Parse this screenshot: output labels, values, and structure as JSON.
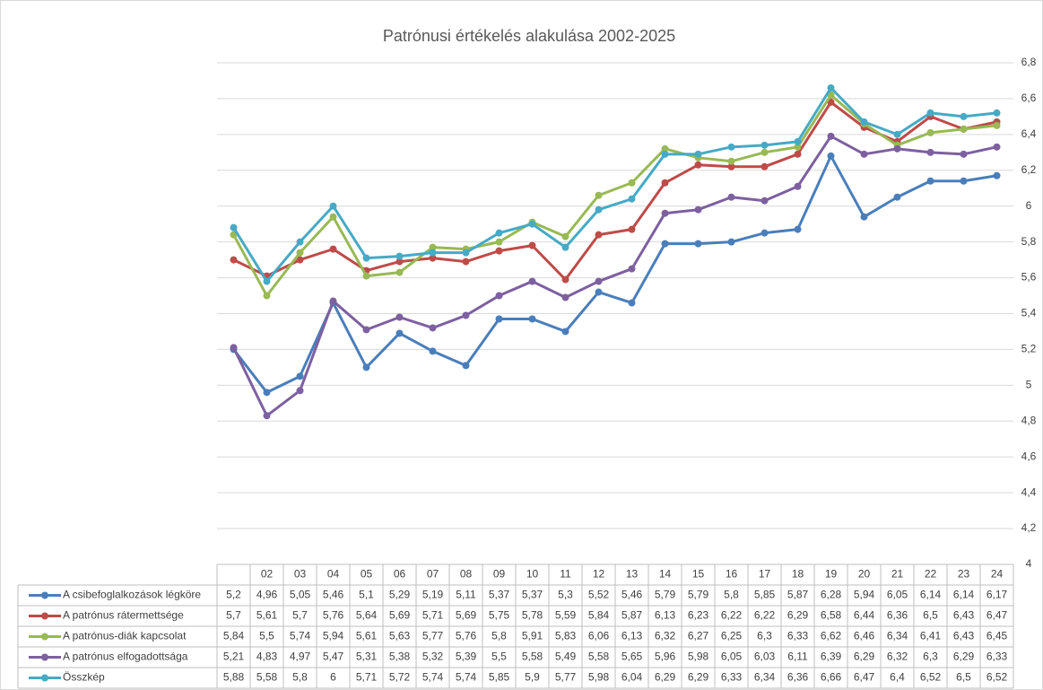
{
  "chart_data": {
    "type": "line",
    "title": "Patrónusi értékelés alakulása 2002-2025",
    "categories": [
      null,
      "02",
      "03",
      "04",
      "05",
      "06",
      "07",
      "08",
      "09",
      "10",
      "11",
      "12",
      "13",
      "14",
      "15",
      "16",
      "17",
      "18",
      "19",
      "20",
      "21",
      "22",
      "23",
      "24"
    ],
    "series": [
      {
        "name": "A csibefoglalkozások légköre",
        "color": "#4a7ebb",
        "values": [
          5.2,
          4.96,
          5.05,
          5.46,
          5.1,
          5.29,
          5.19,
          5.11,
          5.37,
          5.37,
          5.3,
          5.52,
          5.46,
          5.79,
          5.79,
          5.8,
          5.85,
          5.87,
          6.28,
          5.94,
          6.05,
          6.14,
          6.14,
          6.17
        ],
        "value_labels": [
          "5,2",
          "4,96",
          "5,05",
          "5,46",
          "5,1",
          "5,29",
          "5,19",
          "5,11",
          "5,37",
          "5,37",
          "5,3",
          "5,52",
          "5,46",
          "5,79",
          "5,79",
          "5,8",
          "5,85",
          "5,87",
          "6,28",
          "5,94",
          "6,05",
          "6,14",
          "6,14",
          "6,17"
        ]
      },
      {
        "name": "A patrónus rátermettsége",
        "color": "#be4b48",
        "values": [
          5.7,
          5.61,
          5.7,
          5.76,
          5.64,
          5.69,
          5.71,
          5.69,
          5.75,
          5.78,
          5.59,
          5.84,
          5.87,
          6.13,
          6.23,
          6.22,
          6.22,
          6.29,
          6.58,
          6.44,
          6.36,
          6.5,
          6.43,
          6.47
        ],
        "value_labels": [
          "5,7",
          "5,61",
          "5,7",
          "5,76",
          "5,64",
          "5,69",
          "5,71",
          "5,69",
          "5,75",
          "5,78",
          "5,59",
          "5,84",
          "5,87",
          "6,13",
          "6,23",
          "6,22",
          "6,22",
          "6,29",
          "6,58",
          "6,44",
          "6,36",
          "6,5",
          "6,43",
          "6,47"
        ]
      },
      {
        "name": "A patrónus-diák kapcsolat",
        "color": "#98b954",
        "values": [
          5.84,
          5.5,
          5.74,
          5.94,
          5.61,
          5.63,
          5.77,
          5.76,
          5.8,
          5.91,
          5.83,
          6.06,
          6.13,
          6.32,
          6.27,
          6.25,
          6.3,
          6.33,
          6.62,
          6.46,
          6.34,
          6.41,
          6.43,
          6.45
        ],
        "value_labels": [
          "5,84",
          "5,5",
          "5,74",
          "5,94",
          "5,61",
          "5,63",
          "5,77",
          "5,76",
          "5,8",
          "5,91",
          "5,83",
          "6,06",
          "6,13",
          "6,32",
          "6,27",
          "6,25",
          "6,3",
          "6,33",
          "6,62",
          "6,46",
          "6,34",
          "6,41",
          "6,43",
          "6,45"
        ]
      },
      {
        "name": "A patrónus elfogadottsága",
        "color": "#7d60a0",
        "values": [
          5.21,
          4.83,
          4.97,
          5.47,
          5.31,
          5.38,
          5.32,
          5.39,
          5.5,
          5.58,
          5.49,
          5.58,
          5.65,
          5.96,
          5.98,
          6.05,
          6.03,
          6.11,
          6.39,
          6.29,
          6.32,
          6.3,
          6.29,
          6.33
        ],
        "value_labels": [
          "5,21",
          "4,83",
          "4,97",
          "5,47",
          "5,31",
          "5,38",
          "5,32",
          "5,39",
          "5,5",
          "5,58",
          "5,49",
          "5,58",
          "5,65",
          "5,96",
          "5,98",
          "6,05",
          "6,03",
          "6,11",
          "6,39",
          "6,29",
          "6,32",
          "6,3",
          "6,29",
          "6,33"
        ]
      },
      {
        "name": "Összkép",
        "color": "#46aac5",
        "values": [
          5.88,
          5.58,
          5.8,
          6,
          5.71,
          5.72,
          5.74,
          5.74,
          5.85,
          5.9,
          5.77,
          5.98,
          6.04,
          6.29,
          6.29,
          6.33,
          6.34,
          6.36,
          6.66,
          6.47,
          6.4,
          6.52,
          6.5,
          6.52
        ],
        "value_labels": [
          "5,88",
          "5,58",
          "5,8",
          "6",
          "5,71",
          "5,72",
          "5,74",
          "5,74",
          "5,85",
          "5,9",
          "5,77",
          "5,98",
          "6,04",
          "6,29",
          "6,29",
          "6,33",
          "6,34",
          "6,36",
          "6,66",
          "6,47",
          "6,4",
          "6,52",
          "6,5",
          "6,52"
        ]
      }
    ],
    "ylim": [
      4,
      6.8
    ],
    "yticks": [
      4,
      {
        "value": 4.2,
        "label": "4,2"
      },
      {
        "value": 4.4,
        "label": "4,4"
      },
      {
        "value": 4.6,
        "label": "4,6"
      },
      {
        "value": 4.8,
        "label": "4,8"
      },
      5,
      {
        "value": 5.2,
        "label": "5,2"
      },
      {
        "value": 5.4,
        "label": "5,4"
      },
      {
        "value": 5.6,
        "label": "5,6"
      },
      {
        "value": 5.8,
        "label": "5,8"
      },
      6,
      {
        "value": 6.2,
        "label": "6,2"
      },
      {
        "value": 6.4,
        "label": "6,4"
      },
      {
        "value": 6.6,
        "label": "6,6"
      },
      {
        "value": 6.8,
        "label": "6,8"
      }
    ],
    "grid": true
  }
}
